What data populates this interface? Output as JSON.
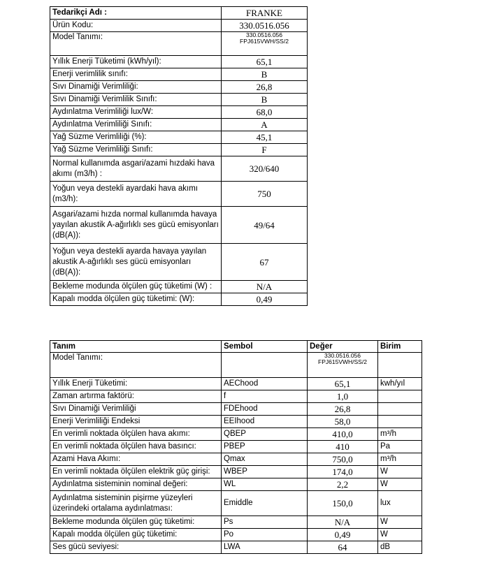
{
  "table1": {
    "rows": [
      {
        "label": "Tedarikçi Adı :",
        "value": "FRANKE"
      },
      {
        "label": "Ürün Kodu:",
        "value": "330.0516.056"
      },
      {
        "label": "Model Tanımı:",
        "value": "330.0516.056\nFPJ615VWH/SS/2"
      },
      {
        "label": "Yıllık Enerji Tüketimi (kWh/yıl):",
        "value": "65,1"
      },
      {
        "label": "Enerji verimlilik sınıfı:",
        "value": "B"
      },
      {
        "label": "Sıvı Dinamiği Verimliliği:",
        "value": "26,8"
      },
      {
        "label": "Sıvı Dinamiği Verimlilik Sınıfı:",
        "value": "B"
      },
      {
        "label": "Aydınlatma Verimliliği lux/W:",
        "value": "68,0"
      },
      {
        "label": "Aydınlatma Verimliliği Sınıfı:",
        "value": "A"
      },
      {
        "label": "Yağ Süzme Verimliliği (%):",
        "value": "45,1"
      },
      {
        "label": "Yağ Süzme Verimliliği Sınıfı:",
        "value": "F"
      },
      {
        "label": "Normal kullanımda asgari/azami hızdaki hava akımı (m3/h) :",
        "value": "320/640"
      },
      {
        "label": "Yoğun veya destekli ayardaki hava akımı (m3/h):",
        "value": "750"
      },
      {
        "label": "Asgari/azami hızda normal kullanımda havaya yayılan akustik A-ağırlıklı ses gücü emisyonları (dB(A)):",
        "value": "49/64"
      },
      {
        "label": "Yoğun veya destekli ayarda havaya yayılan akustik A-ağırlıklı ses gücü emisyonları (dB(A)):",
        "value": "67"
      },
      {
        "label": "Bekleme modunda ölçülen güç tüketimi (W) :",
        "value": "N/A"
      },
      {
        "label": "Kapalı modda ölçülen güç tüketimi: (W):",
        "value": "0,49"
      }
    ]
  },
  "table2": {
    "headers": {
      "tanim": "Tanım",
      "sembol": "Sembol",
      "deger": "Değer",
      "birim": "Birim"
    },
    "rows": [
      {
        "tanim": "Model Tanımı:",
        "sembol": "",
        "deger": "330.0516.056\nFPJ615VWH/SS/2",
        "birim": ""
      },
      {
        "tanim": "Yıllık Enerji Tüketimi:",
        "sembol": "AEChood",
        "deger": "65,1",
        "birim": "kwh/yıl"
      },
      {
        "tanim": "Zaman artırma faktörü:",
        "sembol": "f",
        "deger": "1,0",
        "birim": ""
      },
      {
        "tanim": "Sıvı Dinamiği Verimliliği",
        "sembol": "FDEhood",
        "deger": "26,8",
        "birim": ""
      },
      {
        "tanim": "Enerji Verimliliği Endeksi",
        "sembol": "EEIhood",
        "deger": "58,0",
        "birim": ""
      },
      {
        "tanim": "En verimli noktada ölçülen hava akımı:",
        "sembol": "QBEP",
        "deger": "410,0",
        "birim": "m³/h"
      },
      {
        "tanim": "En verimli noktada ölçülen hava basıncı:",
        "sembol": "PBEP",
        "deger": "410",
        "birim": "Pa"
      },
      {
        "tanim": "Azami Hava Akımı:",
        "sembol": "Qmax",
        "deger": "750,0",
        "birim": "m³/h"
      },
      {
        "tanim": "En verimli noktada ölçülen elektrik güç girişi:",
        "sembol": "WBEP",
        "deger": "174,0",
        "birim": "W"
      },
      {
        "tanim": "Aydınlatma sisteminin nominal değeri:",
        "sembol": "WL",
        "deger": "2,2",
        "birim": "W"
      },
      {
        "tanim": "Aydınlatma sisteminin pişirme yüzeyleri üzerindeki ortalama aydınlatması:",
        "sembol": "Emiddle",
        "deger": "150,0",
        "birim": "lux"
      },
      {
        "tanim": "Bekleme modunda ölçülen güç tüketimi:",
        "sembol": "Ps",
        "deger": "N/A",
        "birim": "W"
      },
      {
        "tanim": "Kapalı modda ölçülen güç tüketimi:",
        "sembol": "Po",
        "deger": "0,49",
        "birim": "W"
      },
      {
        "tanim": "Ses gücü seviyesi:",
        "sembol": "LWA",
        "deger": "64",
        "birim": "dB"
      }
    ]
  }
}
